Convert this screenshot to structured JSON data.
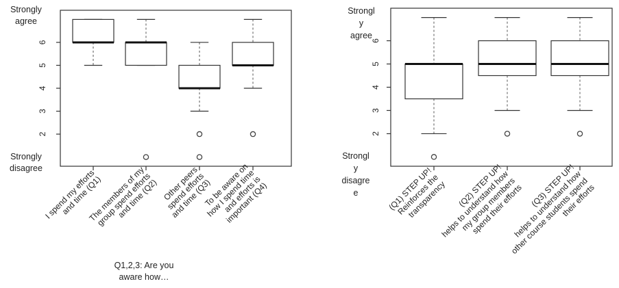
{
  "chart_data": [
    {
      "type": "boxplot",
      "ylim": [
        0.6,
        7.4
      ],
      "y_ticks": [
        "2",
        "3",
        "4",
        "5",
        "6"
      ],
      "top_label_lines": [
        "Strongly",
        "agree"
      ],
      "bottom_label_lines": [
        "Strongly",
        "disagree"
      ],
      "x_note_lines": [
        "Q1,2,3: Are you",
        "aware how…"
      ],
      "series": [
        {
          "label_lines": [
            "I spend my efforts",
            "and time (Q1)"
          ],
          "min": 5,
          "q1": 6,
          "median": 6,
          "q3": 7,
          "max": 7,
          "outliers": []
        },
        {
          "label_lines": [
            "The members of my",
            "group spend efforts",
            "and time (Q2)"
          ],
          "min": 5,
          "q1": 5,
          "median": 6,
          "q3": 6,
          "max": 7,
          "outliers": [
            1
          ]
        },
        {
          "label_lines": [
            "Other peers",
            "spend efforts",
            "and time (Q3)"
          ],
          "min": 3,
          "q1": 4,
          "median": 4,
          "q3": 5,
          "max": 6,
          "outliers": [
            2,
            1
          ]
        },
        {
          "label_lines": [
            "To be aware on",
            "how I spend time",
            "and efforts is",
            "important (Q4)"
          ],
          "min": 4,
          "q1": 5,
          "median": 5,
          "q3": 6,
          "max": 7,
          "outliers": [
            2
          ]
        }
      ]
    },
    {
      "type": "boxplot",
      "ylim": [
        0.6,
        7.4
      ],
      "y_ticks": [
        "2",
        "3",
        "4",
        "5",
        "6"
      ],
      "top_label_lines": [
        "Strongl",
        "y",
        "agree"
      ],
      "bottom_label_lines": [
        "Strongl",
        "y",
        "disagre",
        "e"
      ],
      "series": [
        {
          "label_lines": [
            "(Q1) STEP UP!",
            "Reinforces the",
            "transparency"
          ],
          "min": 2,
          "q1": 3.5,
          "median": 5,
          "q3": 5,
          "max": 7,
          "outliers": [
            1
          ]
        },
        {
          "label_lines": [
            "(Q2) STEP UP!",
            "helps to understand how",
            "my group members",
            "spend their efforts"
          ],
          "min": 3,
          "q1": 4.5,
          "median": 5,
          "q3": 6,
          "max": 7,
          "outliers": [
            2
          ]
        },
        {
          "label_lines": [
            "(Q3) STEP UP!",
            "helps to understand how",
            "other course students spend",
            "their efforts"
          ],
          "min": 3,
          "q1": 4.5,
          "median": 5,
          "q3": 6,
          "max": 7,
          "outliers": [
            2
          ]
        }
      ]
    }
  ]
}
